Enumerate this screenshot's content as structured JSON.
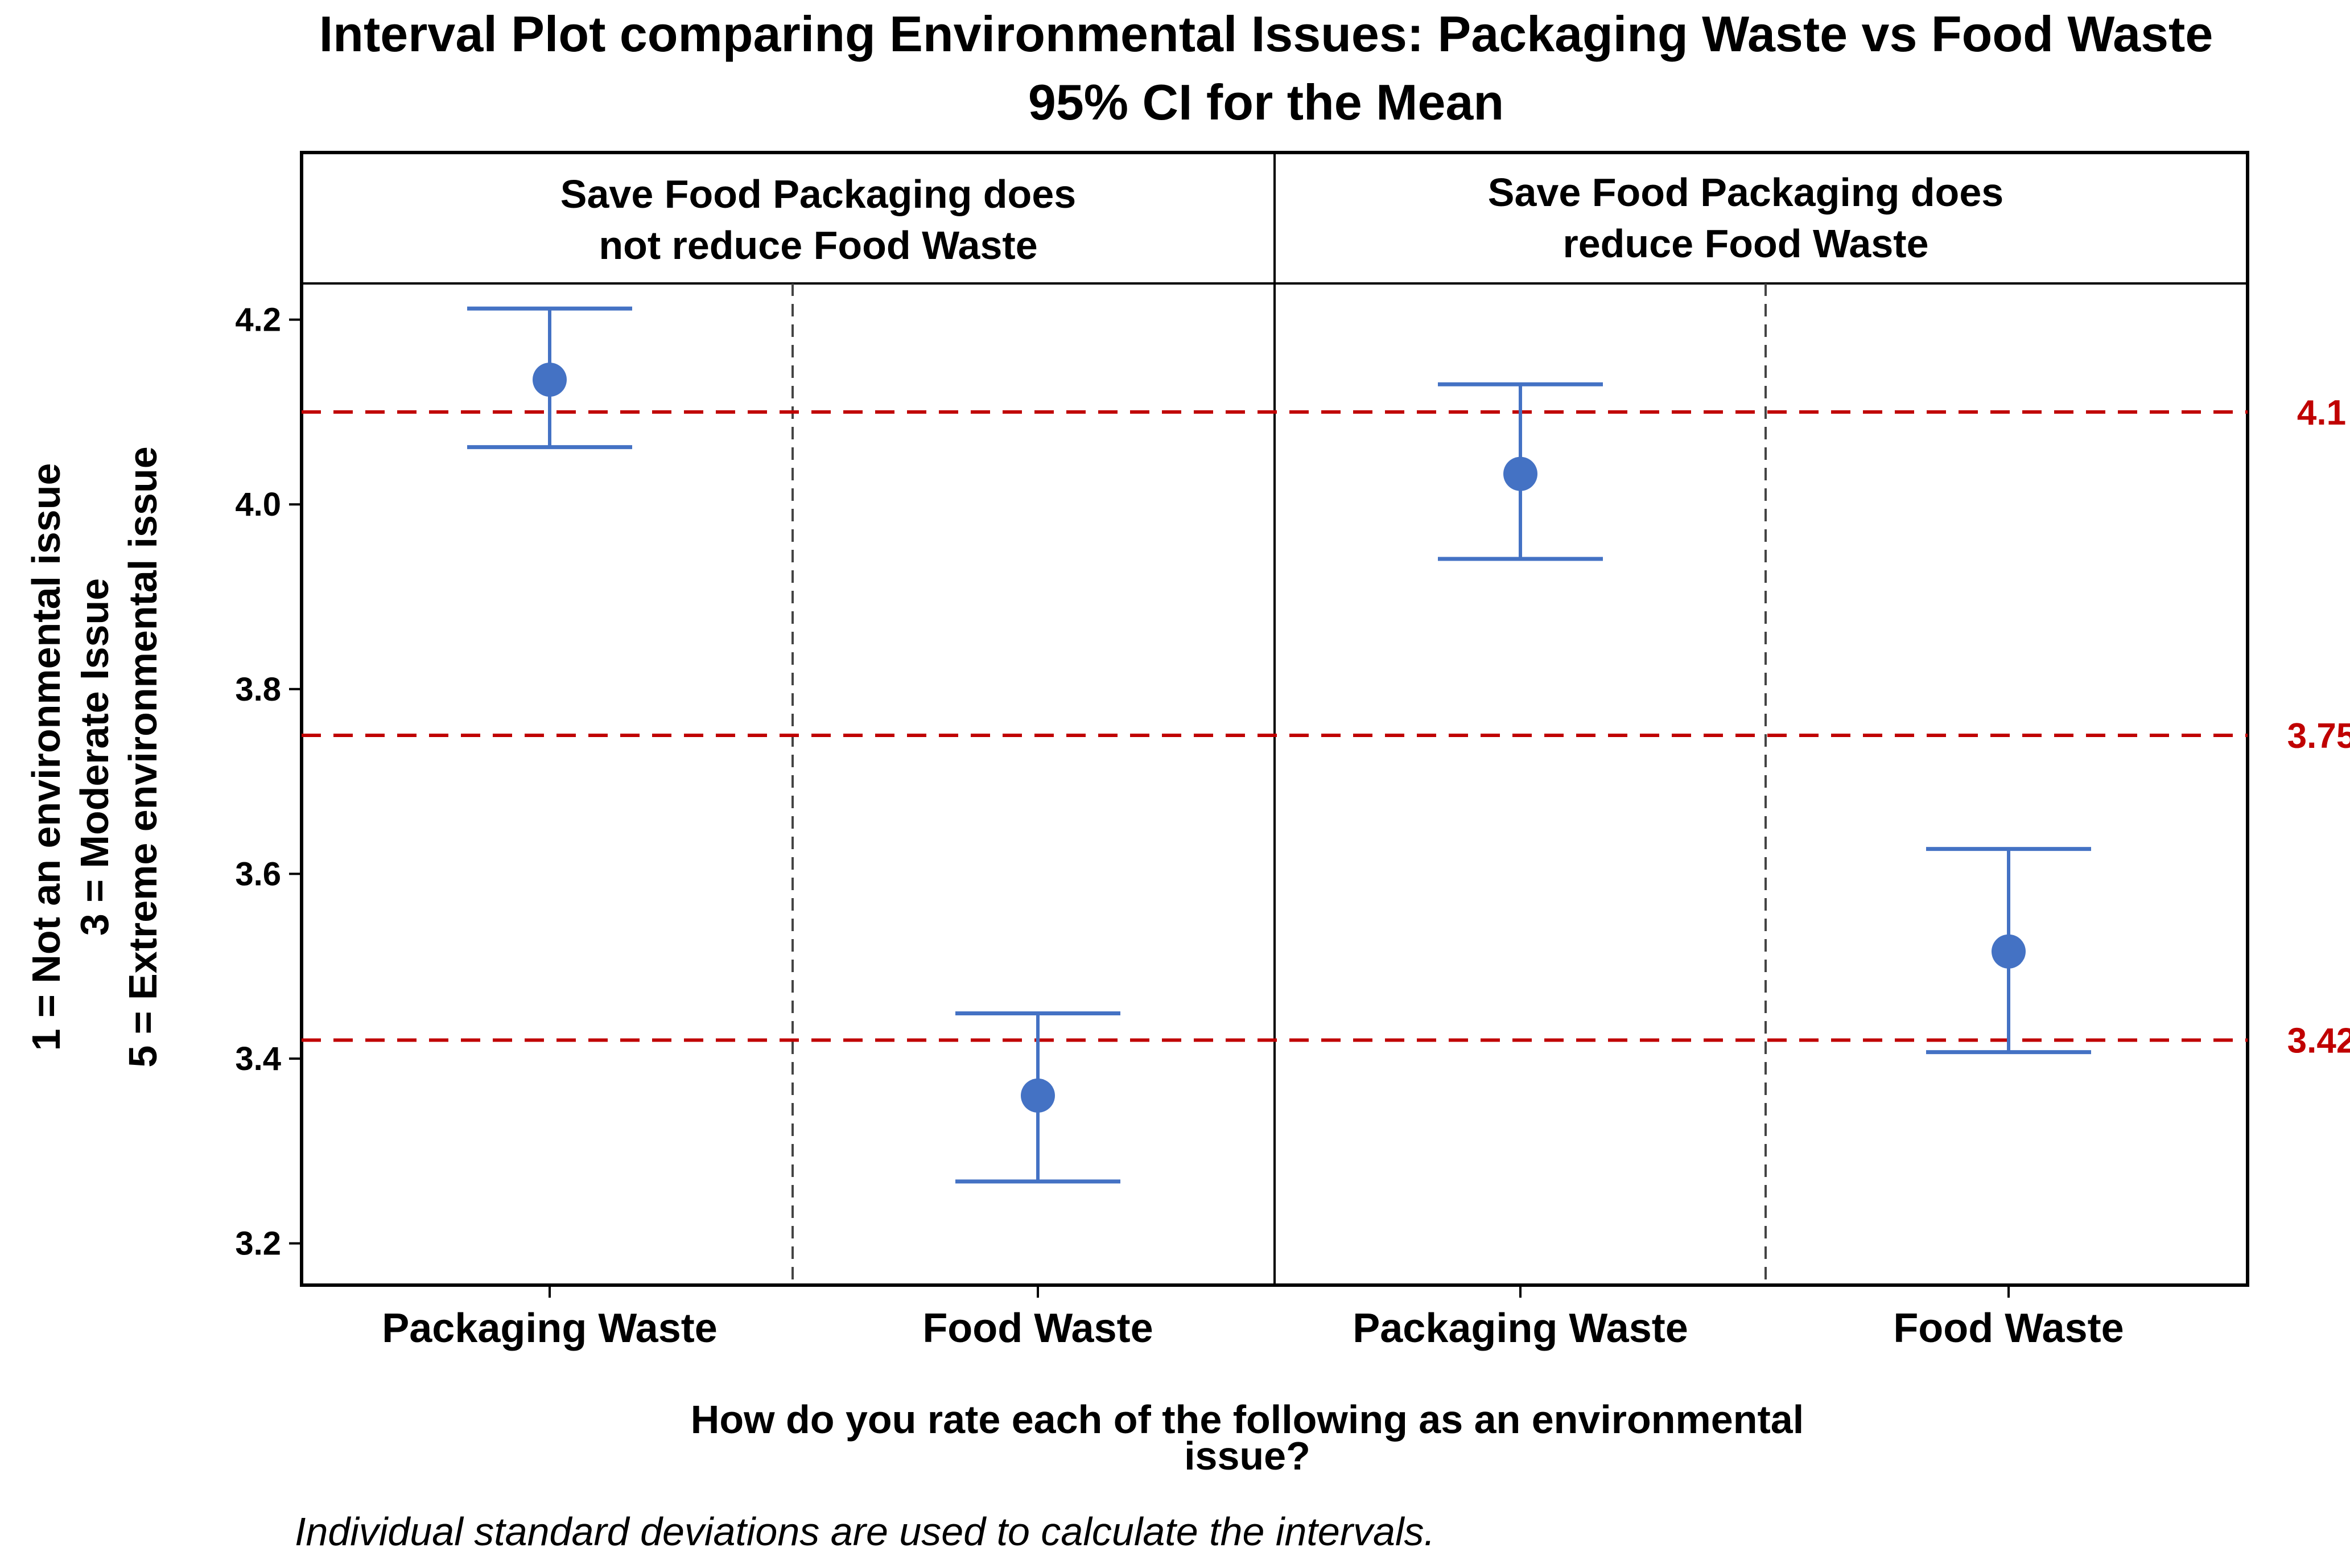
{
  "chart_data": {
    "type": "interval",
    "title": "Interval Plot comparing Environmental Issues: Packaging Waste vs Food Waste",
    "subtitle": "95% CI for the Mean",
    "ylabel_lines": [
      "1 = Not an environmental issue",
      "3 = Moderate Issue",
      "5 = Extreme environmental issue"
    ],
    "xlabel_lines": [
      "How do you rate each of the following as an environmental",
      "issue?"
    ],
    "footnote": "Individual standard deviations are used to calculate the intervals.",
    "ylim": [
      3.18,
      4.26
    ],
    "yticks": [
      {
        "value": 3.2,
        "label": "3.2"
      },
      {
        "value": 3.4,
        "label": "3.4"
      },
      {
        "value": 3.6,
        "label": "3.6"
      },
      {
        "value": 3.8,
        "label": "3.8"
      },
      {
        "value": 4.0,
        "label": "4.0"
      },
      {
        "value": 4.2,
        "label": "4.2"
      }
    ],
    "categories": [
      "Packaging Waste",
      "Food Waste"
    ],
    "panels": [
      {
        "header_lines": [
          "Save Food Packaging does",
          "not reduce Food Waste"
        ],
        "intervals": [
          {
            "category": "Packaging Waste",
            "mean": 4.135,
            "lower": 4.062,
            "upper": 4.212
          },
          {
            "category": "Food Waste",
            "mean": 3.36,
            "lower": 3.267,
            "upper": 3.449
          }
        ]
      },
      {
        "header_lines": [
          "Save Food Packaging does",
          "reduce Food Waste"
        ],
        "intervals": [
          {
            "category": "Packaging Waste",
            "mean": 4.033,
            "lower": 3.941,
            "upper": 4.13
          },
          {
            "category": "Food Waste",
            "mean": 3.516,
            "lower": 3.407,
            "upper": 3.627
          }
        ]
      }
    ],
    "reference_lines": [
      {
        "value": 4.1,
        "label": "4.1"
      },
      {
        "value": 3.75,
        "label": "3.75"
      },
      {
        "value": 3.42,
        "label": "3.42"
      }
    ],
    "colors": {
      "interval": "#4472c4",
      "reference": "#c00000",
      "frame": "#000000",
      "divider": "#444444"
    },
    "grid": false
  }
}
